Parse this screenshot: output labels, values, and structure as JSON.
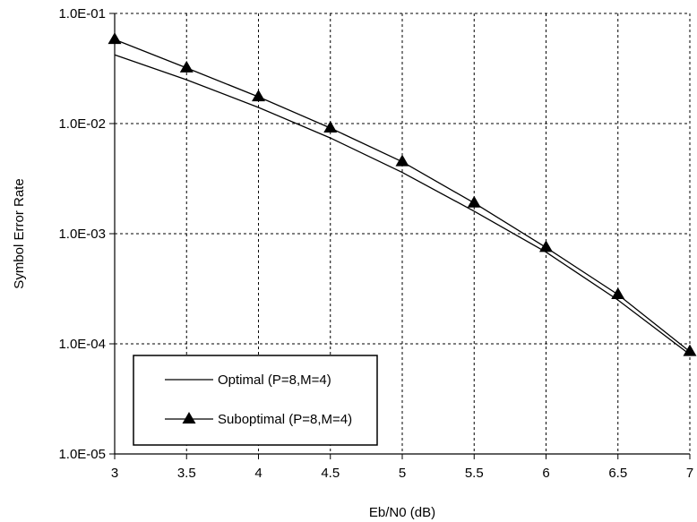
{
  "chart_data": {
    "type": "line",
    "title": "",
    "xlabel": "Eb/N0 (dB)",
    "ylabel": "Symbol Error Rate",
    "xlim": [
      3,
      7
    ],
    "ylim": [
      1e-05,
      0.1
    ],
    "yscale": "log",
    "grid": true,
    "legend_position": "bottom-left",
    "x_tick_labels": [
      "3",
      "3.5",
      "4",
      "4.5",
      "5",
      "5.5",
      "6",
      "6.5",
      "7"
    ],
    "y_tick_labels": [
      "1.0E-05",
      "1.0E-04",
      "1.0E-03",
      "1.0E-02",
      "1.0E-01"
    ],
    "x": [
      3,
      3.5,
      4,
      4.5,
      5,
      5.5,
      6,
      6.5,
      7
    ],
    "series": [
      {
        "name": "Optimal (P=8,M=4)",
        "marker": "none",
        "values": [
          0.042,
          0.025,
          0.014,
          0.0074,
          0.0036,
          0.0016,
          0.00068,
          0.00025,
          8e-05
        ]
      },
      {
        "name": "Suboptimal (P=8,M=4)",
        "marker": "triangle",
        "values": [
          0.058,
          0.032,
          0.0175,
          0.0091,
          0.0045,
          0.0019,
          0.00075,
          0.00028,
          8.5e-05
        ]
      }
    ]
  }
}
